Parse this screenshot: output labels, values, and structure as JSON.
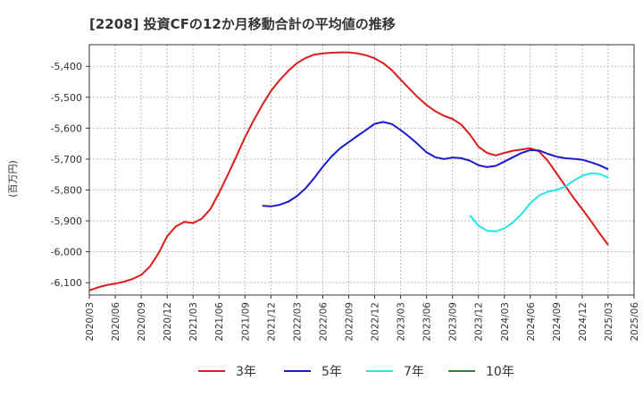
{
  "chart_data": {
    "type": "line",
    "title": "[2208]  投資CFの12か月移動合計の平均値の推移",
    "ylabel": "(百万円)",
    "xlabel": "",
    "ylim": [
      -6140,
      -5330
    ],
    "yticks": [
      -5400,
      -5500,
      -5600,
      -5700,
      -5800,
      -5900,
      -6000,
      -6100
    ],
    "ytick_labels": [
      "-5,400",
      "-5,500",
      "-5,600",
      "-5,700",
      "-5,800",
      "-5,900",
      "-6,000",
      "-6,100"
    ],
    "xlim": [
      "2020-03",
      "2025-06"
    ],
    "xtick_labels": [
      "2020/03",
      "2020/06",
      "2020/09",
      "2020/12",
      "2021/03",
      "2021/06",
      "2021/09",
      "2021/12",
      "2022/03",
      "2022/06",
      "2022/09",
      "2022/12",
      "2023/03",
      "2023/06",
      "2023/09",
      "2023/12",
      "2024/03",
      "2024/06",
      "2024/09",
      "2024/12",
      "2025/03",
      "2025/06"
    ],
    "grid": true,
    "legend_position": "bottom",
    "series": [
      {
        "name": "3年",
        "color": "#dd1c1c",
        "points": [
          [
            "2020-03",
            -6125
          ],
          [
            "2020-04",
            -6115
          ],
          [
            "2020-05",
            -6108
          ],
          [
            "2020-06",
            -6103
          ],
          [
            "2020-07",
            -6097
          ],
          [
            "2020-08",
            -6088
          ],
          [
            "2020-09",
            -6075
          ],
          [
            "2020-10",
            -6048
          ],
          [
            "2020-11",
            -6005
          ],
          [
            "2020-12",
            -5950
          ],
          [
            "2021-01",
            -5918
          ],
          [
            "2021-02",
            -5903
          ],
          [
            "2021-03",
            -5907
          ],
          [
            "2021-04",
            -5893
          ],
          [
            "2021-05",
            -5862
          ],
          [
            "2021-06",
            -5810
          ],
          [
            "2021-07",
            -5752
          ],
          [
            "2021-08",
            -5692
          ],
          [
            "2021-09",
            -5630
          ],
          [
            "2021-10",
            -5575
          ],
          [
            "2021-11",
            -5525
          ],
          [
            "2021-12",
            -5480
          ],
          [
            "2022-01",
            -5445
          ],
          [
            "2022-02",
            -5415
          ],
          [
            "2022-03",
            -5390
          ],
          [
            "2022-04",
            -5373
          ],
          [
            "2022-05",
            -5362
          ],
          [
            "2022-06",
            -5358
          ],
          [
            "2022-07",
            -5356
          ],
          [
            "2022-08",
            -5355
          ],
          [
            "2022-09",
            -5355
          ],
          [
            "2022-10",
            -5358
          ],
          [
            "2022-11",
            -5364
          ],
          [
            "2022-12",
            -5374
          ],
          [
            "2023-01",
            -5390
          ],
          [
            "2023-02",
            -5413
          ],
          [
            "2023-03",
            -5443
          ],
          [
            "2023-04",
            -5472
          ],
          [
            "2023-05",
            -5500
          ],
          [
            "2023-06",
            -5525
          ],
          [
            "2023-07",
            -5545
          ],
          [
            "2023-08",
            -5560
          ],
          [
            "2023-09",
            -5570
          ],
          [
            "2023-10",
            -5588
          ],
          [
            "2023-11",
            -5620
          ],
          [
            "2023-12",
            -5660
          ],
          [
            "2024-01",
            -5680
          ],
          [
            "2024-02",
            -5688
          ],
          [
            "2024-03",
            -5680
          ],
          [
            "2024-04",
            -5673
          ],
          [
            "2024-05",
            -5669
          ],
          [
            "2024-06",
            -5665
          ],
          [
            "2024-07",
            -5675
          ],
          [
            "2024-08",
            -5705
          ],
          [
            "2024-09",
            -5745
          ],
          [
            "2024-10",
            -5785
          ],
          [
            "2024-11",
            -5825
          ],
          [
            "2024-12",
            -5862
          ],
          [
            "2025-01",
            -5900
          ],
          [
            "2025-02",
            -5940
          ],
          [
            "2025-03",
            -5978
          ]
        ]
      },
      {
        "name": "5年",
        "color": "#1a1acc",
        "points": [
          [
            "2021-11",
            -5851
          ],
          [
            "2021-12",
            -5853
          ],
          [
            "2022-01",
            -5848
          ],
          [
            "2022-02",
            -5838
          ],
          [
            "2022-03",
            -5820
          ],
          [
            "2022-04",
            -5795
          ],
          [
            "2022-05",
            -5762
          ],
          [
            "2022-06",
            -5725
          ],
          [
            "2022-07",
            -5692
          ],
          [
            "2022-08",
            -5665
          ],
          [
            "2022-09",
            -5645
          ],
          [
            "2022-10",
            -5625
          ],
          [
            "2022-11",
            -5606
          ],
          [
            "2022-12",
            -5586
          ],
          [
            "2023-01",
            -5580
          ],
          [
            "2023-02",
            -5587
          ],
          [
            "2023-03",
            -5606
          ],
          [
            "2023-04",
            -5628
          ],
          [
            "2023-05",
            -5652
          ],
          [
            "2023-06",
            -5678
          ],
          [
            "2023-07",
            -5694
          ],
          [
            "2023-08",
            -5700
          ],
          [
            "2023-09",
            -5695
          ],
          [
            "2023-10",
            -5697
          ],
          [
            "2023-11",
            -5705
          ],
          [
            "2023-12",
            -5720
          ],
          [
            "2024-01",
            -5726
          ],
          [
            "2024-02",
            -5722
          ],
          [
            "2024-03",
            -5708
          ],
          [
            "2024-04",
            -5694
          ],
          [
            "2024-05",
            -5680
          ],
          [
            "2024-06",
            -5671
          ],
          [
            "2024-07",
            -5672
          ],
          [
            "2024-08",
            -5683
          ],
          [
            "2024-09",
            -5692
          ],
          [
            "2024-10",
            -5697
          ],
          [
            "2024-11",
            -5699
          ],
          [
            "2024-12",
            -5702
          ],
          [
            "2025-01",
            -5710
          ],
          [
            "2025-02",
            -5720
          ],
          [
            "2025-03",
            -5733
          ]
        ]
      },
      {
        "name": "7年",
        "color": "#22e8e8",
        "points": [
          [
            "2023-11",
            -5882
          ],
          [
            "2023-12",
            -5915
          ],
          [
            "2024-01",
            -5932
          ],
          [
            "2024-02",
            -5934
          ],
          [
            "2024-03",
            -5924
          ],
          [
            "2024-04",
            -5905
          ],
          [
            "2024-05",
            -5878
          ],
          [
            "2024-06",
            -5843
          ],
          [
            "2024-07",
            -5818
          ],
          [
            "2024-08",
            -5806
          ],
          [
            "2024-09",
            -5800
          ],
          [
            "2024-10",
            -5790
          ],
          [
            "2024-11",
            -5770
          ],
          [
            "2024-12",
            -5754
          ],
          [
            "2025-01",
            -5746
          ],
          [
            "2025-02",
            -5748
          ],
          [
            "2025-03",
            -5760
          ]
        ]
      },
      {
        "name": "10年",
        "color": "#228b22",
        "points": []
      }
    ]
  }
}
